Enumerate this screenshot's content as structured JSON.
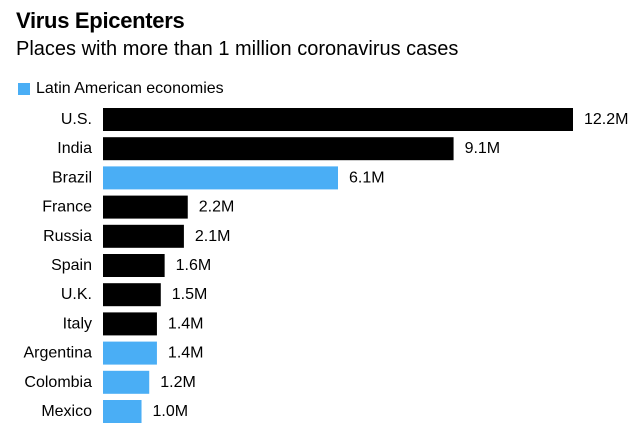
{
  "colors": {
    "default_bar": "#000000",
    "highlight_bar": "#4aaef5",
    "text": "#000000",
    "background": "#ffffff"
  },
  "chart_data": {
    "type": "bar",
    "orientation": "horizontal",
    "title": "Virus Epicenters",
    "subtitle": "Places with more than 1 million coronavirus cases",
    "legend": {
      "placement": "top-left",
      "entries": [
        {
          "label": "Latin American economies",
          "color": "#4aaef5"
        }
      ]
    },
    "categories": [
      "U.S.",
      "India",
      "Brazil",
      "France",
      "Russia",
      "Spain",
      "U.K.",
      "Italy",
      "Argentina",
      "Colombia",
      "Mexico"
    ],
    "values": [
      12.2,
      9.1,
      6.1,
      2.2,
      2.1,
      1.6,
      1.5,
      1.4,
      1.4,
      1.2,
      1.0
    ],
    "value_labels": [
      "12.2M",
      "9.1M",
      "6.1M",
      "2.2M",
      "2.1M",
      "1.6M",
      "1.5M",
      "1.4M",
      "1.4M",
      "1.2M",
      "1.0M"
    ],
    "highlighted": [
      false,
      false,
      true,
      false,
      false,
      false,
      false,
      false,
      true,
      true,
      true
    ],
    "unit": "million cases",
    "xlim": [
      0,
      12.2
    ],
    "xlabel": "",
    "ylabel": "",
    "grid": false
  }
}
